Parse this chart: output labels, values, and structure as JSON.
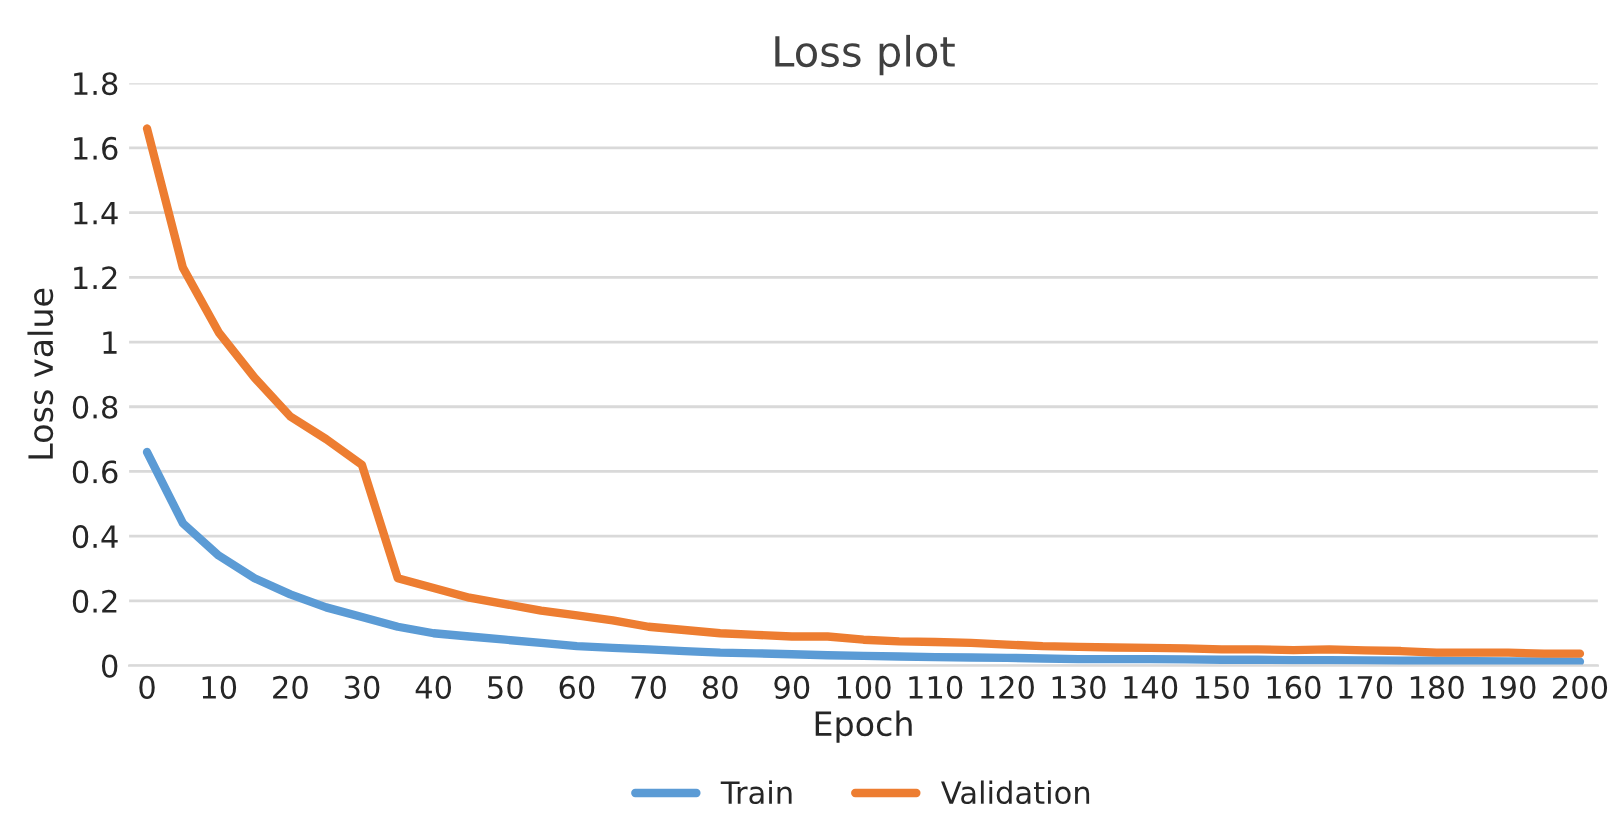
{
  "chart_data": {
    "type": "line",
    "title": "Loss plot",
    "xlabel": "Epoch",
    "ylabel": "Loss value",
    "categories": [
      "0",
      null,
      "10",
      null,
      "20",
      null,
      "30",
      null,
      "40",
      null,
      "50",
      null,
      "60",
      null,
      "70",
      null,
      "80",
      null,
      "90",
      null,
      "100",
      null,
      "110",
      null,
      "120",
      null,
      "130",
      null,
      "140",
      null,
      "150",
      null,
      "160",
      null,
      "170",
      null,
      "180",
      null,
      "190",
      null,
      "200"
    ],
    "series": [
      {
        "name": "Train",
        "color": "#5b9bd5",
        "values": [
          0.66,
          0.44,
          0.34,
          0.27,
          0.22,
          0.18,
          0.15,
          0.12,
          0.1,
          0.09,
          0.08,
          0.07,
          0.06,
          0.055,
          0.05,
          0.045,
          0.04,
          0.038,
          0.035,
          0.032,
          0.03,
          0.028,
          0.026,
          0.025,
          0.024,
          0.022,
          0.02,
          0.02,
          0.02,
          0.019,
          0.018,
          0.018,
          0.017,
          0.017,
          0.016,
          0.015,
          0.015,
          0.014,
          0.013,
          0.013,
          0.012
        ]
      },
      {
        "name": "Validation",
        "color": "#ed7d31",
        "values": [
          1.66,
          1.23,
          1.03,
          0.89,
          0.77,
          0.7,
          0.62,
          0.27,
          0.24,
          0.21,
          0.19,
          0.17,
          0.155,
          0.14,
          0.12,
          0.11,
          0.1,
          0.095,
          0.09,
          0.09,
          0.08,
          0.075,
          0.073,
          0.07,
          0.065,
          0.06,
          0.058,
          0.056,
          0.055,
          0.053,
          0.05,
          0.05,
          0.048,
          0.05,
          0.047,
          0.045,
          0.04,
          0.04,
          0.04,
          0.037,
          0.037
        ]
      }
    ],
    "ylim": [
      0,
      1.8
    ],
    "yticks": [
      0,
      0.2,
      0.4,
      0.6,
      0.8,
      1,
      1.2,
      1.4,
      1.6,
      1.8
    ],
    "grid": "y",
    "legend": "bottom",
    "marker": "none",
    "line_style": "solid"
  }
}
